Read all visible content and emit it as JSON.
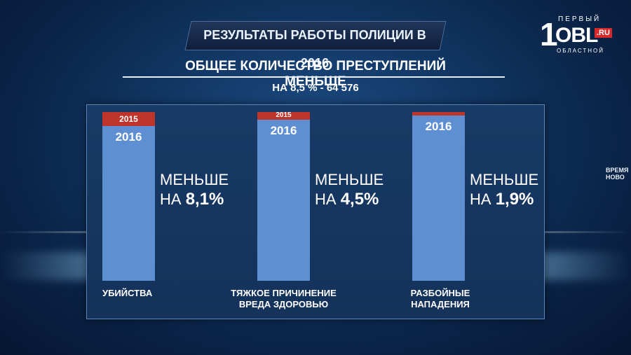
{
  "title": "РЕЗУЛЬТАТЫ РАБОТЫ ПОЛИЦИИ В 2016",
  "subtitle": "ОБЩЕЕ КОЛИЧЕСТВО ПРЕСТУПЛЕНИЙ МЕНЬШЕ",
  "subtitle2": "НА 8,5 % - 64 576",
  "logo": {
    "digit": "1",
    "top": "ПЕРВЫЙ",
    "main": "OBL",
    "ru": ".RU",
    "bottom": "ОБЛАСТНОЙ"
  },
  "side_text": "ВРЕМЯ НОВО",
  "colors": {
    "y2015": "#c0352b",
    "y2016": "#5f8fd3"
  },
  "chart_data": {
    "type": "bar",
    "stacked": true,
    "categories": [
      "УБИЙСТВА",
      "ТЯЖКОЕ ПРИЧИНЕНИЕ ВРЕДА ЗДОРОВЬЮ",
      "РАЗБОЙНЫЕ НАПАДЕНИЯ"
    ],
    "category_lines": [
      [
        "УБИЙСТВА"
      ],
      [
        "ТЯЖКОЕ ПРИЧИНЕНИЕ",
        "ВРЕДА ЗДОРОВЬЮ"
      ],
      [
        "РАЗБОЙНЫЕ",
        "НАПАДЕНИЯ"
      ]
    ],
    "series": [
      {
        "name": "2016",
        "values": [
          91.9,
          95.5,
          98.1
        ]
      },
      {
        "name": "2015",
        "values": [
          8.1,
          4.5,
          1.9
        ]
      }
    ],
    "year_labels": [
      [
        "2015",
        "2016"
      ],
      [
        "2015",
        "2016"
      ],
      [
        "",
        "2016"
      ]
    ],
    "less_label": "МЕНЬШЕ",
    "on_label": "НА",
    "decrease_labels": [
      "8,1%",
      "4,5%",
      "1,9%"
    ],
    "ylim": [
      0,
      100
    ]
  }
}
